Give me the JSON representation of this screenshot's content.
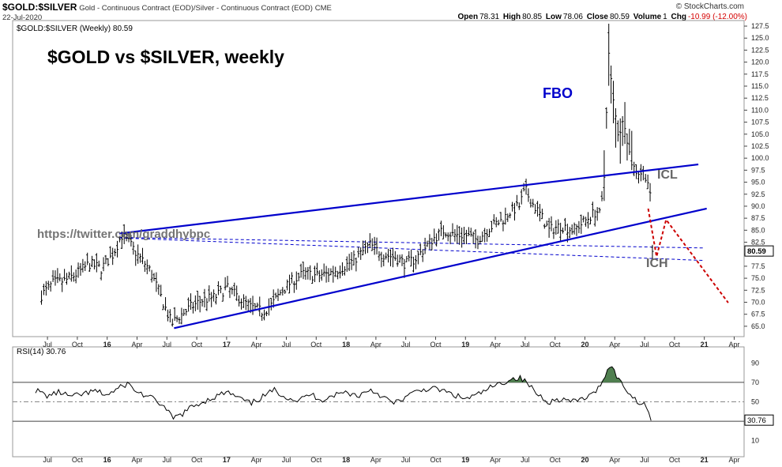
{
  "header": {
    "symbol": "$GOLD:$SILVER",
    "description": "Gold - Continuous Contract (EOD)/Silver - Continuous Contract (EOD)",
    "exchange": "CME",
    "date": "22-Jul-2020",
    "watermark": "© StockCharts.com",
    "quote": {
      "open_label": "Open",
      "open": "78.31",
      "high_label": "High",
      "high": "80.85",
      "low_label": "Low",
      "low": "78.06",
      "close_label": "Close",
      "close": "80.59",
      "volume_label": "Volume",
      "volume": "1",
      "chg_label": "Chg",
      "chg": "-10.99 (-12.00%)"
    }
  },
  "colors": {
    "accent_blue": "#0000cc",
    "forecast_red": "#cc0000",
    "rsi_fill": "#4f7f4f"
  },
  "chart_data": [
    {
      "type": "ohlc",
      "panel_label": "$GOLD:$SILVER (Weekly) 80.59",
      "title": "$GOLD vs $SILVER, weekly",
      "last_value_label": "80.59",
      "ylim": [
        63.5,
        128
      ],
      "y_ticks": [
        "65.0",
        "67.5",
        "70.0",
        "72.5",
        "75.0",
        "77.5",
        "80.0",
        "82.5",
        "85.0",
        "87.5",
        "90.0",
        "92.5",
        "95.0",
        "97.5",
        "100.0",
        "102.5",
        "105.0",
        "107.5",
        "110.0",
        "112.5",
        "115.0",
        "117.5",
        "120.0",
        "122.5",
        "125.0",
        "127.5"
      ],
      "x_ticks": [
        "Jul",
        "Oct",
        "16",
        "Apr",
        "Jul",
        "Oct",
        "17",
        "Apr",
        "Jul",
        "Oct",
        "18",
        "Apr",
        "Jul",
        "Oct",
        "19",
        "Apr",
        "Jul",
        "Oct",
        "20",
        "Apr",
        "Jul",
        "Oct",
        "21",
        "Apr"
      ],
      "annotations": {
        "fbo": "FBO",
        "icl": "ICL",
        "ich": "ICH",
        "url": "https://twitter.com/graddhybpc"
      },
      "price_path": [
        [
          2015.45,
          71.5
        ],
        [
          2015.55,
          74
        ],
        [
          2015.65,
          74.5
        ],
        [
          2015.75,
          76
        ],
        [
          2015.85,
          78
        ],
        [
          2015.95,
          77
        ],
        [
          2016.05,
          80
        ],
        [
          2016.12,
          84
        ],
        [
          2016.18,
          82.5
        ],
        [
          2016.25,
          80
        ],
        [
          2016.35,
          77
        ],
        [
          2016.42,
          73
        ],
        [
          2016.5,
          68
        ],
        [
          2016.54,
          65.5
        ],
        [
          2016.6,
          67
        ],
        [
          2016.7,
          69
        ],
        [
          2016.8,
          70.5
        ],
        [
          2016.9,
          71
        ],
        [
          2017.0,
          73
        ],
        [
          2017.1,
          71
        ],
        [
          2017.2,
          69
        ],
        [
          2017.3,
          68
        ],
        [
          2017.38,
          69.5
        ],
        [
          2017.45,
          72
        ],
        [
          2017.55,
          74.5
        ],
        [
          2017.65,
          76
        ],
        [
          2017.75,
          75.5
        ],
        [
          2017.85,
          76
        ],
        [
          2017.95,
          77
        ],
        [
          2018.05,
          78.5
        ],
        [
          2018.12,
          80
        ],
        [
          2018.2,
          82
        ],
        [
          2018.3,
          80
        ],
        [
          2018.4,
          79.5
        ],
        [
          2018.5,
          78
        ],
        [
          2018.58,
          79
        ],
        [
          2018.65,
          81
        ],
        [
          2018.72,
          83
        ],
        [
          2018.82,
          85
        ],
        [
          2018.9,
          84
        ],
        [
          2019.0,
          84
        ],
        [
          2019.1,
          83
        ],
        [
          2019.2,
          85.5
        ],
        [
          2019.3,
          87
        ],
        [
          2019.38,
          89
        ],
        [
          2019.45,
          90
        ],
        [
          2019.5,
          93.5
        ],
        [
          2019.55,
          91
        ],
        [
          2019.62,
          88.5
        ],
        [
          2019.7,
          85
        ],
        [
          2019.8,
          86
        ],
        [
          2019.9,
          85
        ],
        [
          2019.98,
          86.5
        ],
        [
          2020.05,
          88
        ],
        [
          2020.1,
          89
        ],
        [
          2020.13,
          88
        ],
        [
          2020.16,
          95
        ],
        [
          2020.18,
          110
        ],
        [
          2020.2,
          121.5
        ],
        [
          2020.23,
          113
        ],
        [
          2020.28,
          105
        ],
        [
          2020.33,
          108
        ],
        [
          2020.38,
          100
        ],
        [
          2020.42,
          97.5
        ],
        [
          2020.46,
          97
        ],
        [
          2020.5,
          97
        ],
        [
          2020.53,
          95
        ],
        [
          2020.55,
          91
        ],
        [
          2020.57,
          80.59
        ]
      ],
      "resistance_line": {
        "x": [
          2016.1,
          2020.95
        ],
        "y": [
          84.3,
          98.7
        ]
      },
      "support_line": {
        "x": [
          2016.56,
          2021.02
        ],
        "y": [
          64.6,
          89.5
        ]
      },
      "dashed_line_upper": {
        "x": [
          2016.1,
          2021.0
        ],
        "y": [
          83.5,
          81.3
        ]
      },
      "dashed_line_lower": {
        "x": [
          2016.1,
          2021.0
        ],
        "y": [
          83.4,
          78.7
        ]
      },
      "forecast_path": {
        "x": [
          2020.53,
          2020.6,
          2020.68,
          2021.2
        ],
        "y": [
          89.5,
          79.5,
          87.2,
          69.9
        ]
      }
    },
    {
      "type": "line",
      "panel_label": "RSI(14) 30.76",
      "last_value_label": "30.76",
      "ylim": [
        0,
        100
      ],
      "y_ticks": [
        "10",
        "30",
        "50",
        "70",
        "90"
      ],
      "reference_levels": [
        30,
        50,
        70
      ],
      "rsi_series": [
        [
          2015.4,
          62
        ],
        [
          2015.5,
          56
        ],
        [
          2015.6,
          60
        ],
        [
          2015.7,
          55
        ],
        [
          2015.8,
          58
        ],
        [
          2015.9,
          61
        ],
        [
          2016.0,
          57
        ],
        [
          2016.1,
          64
        ],
        [
          2016.17,
          69
        ],
        [
          2016.25,
          60
        ],
        [
          2016.35,
          55
        ],
        [
          2016.45,
          48
        ],
        [
          2016.55,
          33
        ],
        [
          2016.62,
          37
        ],
        [
          2016.7,
          44
        ],
        [
          2016.8,
          50
        ],
        [
          2016.9,
          55
        ],
        [
          2017.0,
          60
        ],
        [
          2017.1,
          54
        ],
        [
          2017.2,
          48
        ],
        [
          2017.3,
          55
        ],
        [
          2017.4,
          62
        ],
        [
          2017.5,
          55
        ],
        [
          2017.6,
          51
        ],
        [
          2017.7,
          58
        ],
        [
          2017.8,
          52
        ],
        [
          2017.9,
          57
        ],
        [
          2018.0,
          60
        ],
        [
          2018.1,
          56
        ],
        [
          2018.2,
          63
        ],
        [
          2018.3,
          56
        ],
        [
          2018.4,
          48
        ],
        [
          2018.5,
          55
        ],
        [
          2018.6,
          61
        ],
        [
          2018.7,
          64
        ],
        [
          2018.8,
          62
        ],
        [
          2018.9,
          57
        ],
        [
          2019.0,
          53
        ],
        [
          2019.1,
          57
        ],
        [
          2019.2,
          64
        ],
        [
          2019.3,
          69
        ],
        [
          2019.37,
          73
        ],
        [
          2019.45,
          75
        ],
        [
          2019.52,
          69
        ],
        [
          2019.6,
          58
        ],
        [
          2019.7,
          50
        ],
        [
          2019.8,
          53
        ],
        [
          2019.9,
          50
        ],
        [
          2020.0,
          54
        ],
        [
          2020.08,
          58
        ],
        [
          2020.13,
          69
        ],
        [
          2020.18,
          79
        ],
        [
          2020.22,
          91
        ],
        [
          2020.25,
          80
        ],
        [
          2020.3,
          70
        ],
        [
          2020.35,
          62
        ],
        [
          2020.4,
          55
        ],
        [
          2020.45,
          50
        ],
        [
          2020.5,
          48
        ],
        [
          2020.55,
          37
        ],
        [
          2020.57,
          30.76
        ]
      ]
    }
  ]
}
